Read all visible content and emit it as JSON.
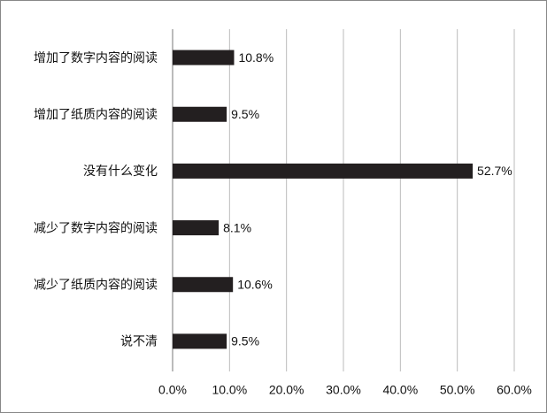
{
  "chart_data": {
    "type": "bar",
    "orientation": "horizontal",
    "categories": [
      "增加了数字内容的阅读",
      "增加了纸质内容的阅读",
      "没有什么变化",
      "减少了数字内容的阅读",
      "减少了纸质内容的阅读",
      "说不清"
    ],
    "values": [
      10.8,
      9.5,
      52.7,
      8.1,
      10.6,
      9.5
    ],
    "value_labels": [
      "10.8%",
      "9.5%",
      "52.7%",
      "8.1%",
      "10.6%",
      "9.5%"
    ],
    "color": "#231f20",
    "xlim": [
      0,
      60
    ],
    "xticks": [
      {
        "value": 0,
        "label": "0.0%"
      },
      {
        "value": 10,
        "label": "10.0%"
      },
      {
        "value": 20,
        "label": "20.0%"
      },
      {
        "value": 30,
        "label": "30.0%"
      },
      {
        "value": 40,
        "label": "40.0%"
      },
      {
        "value": 50,
        "label": "50.0%"
      },
      {
        "value": 60,
        "label": "60.0%"
      }
    ],
    "grid": true
  }
}
